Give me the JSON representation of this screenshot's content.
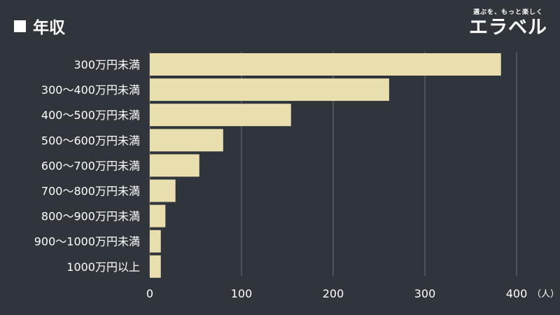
{
  "header": {
    "title": "年収",
    "logo_tagline": "選ぶを、もっと楽しく",
    "logo_name": "エラベル"
  },
  "colors": {
    "background": "#30343b",
    "bar": "#e9dfae",
    "gridline": "#6b7078",
    "text": "#ffffff"
  },
  "chart_data": {
    "type": "bar",
    "orientation": "horizontal",
    "title": "年収",
    "categories": [
      "300万円未満",
      "300〜400万円未満",
      "400〜500万円未満",
      "500〜600万円未満",
      "600〜700万円未満",
      "700〜800万円未満",
      "800〜900万円未満",
      "900〜1000万円未満",
      "1000万円以上"
    ],
    "values": [
      383,
      261,
      154,
      80,
      54,
      28,
      17,
      12,
      12
    ],
    "xlim": [
      0,
      400
    ],
    "xticks": [
      0,
      100,
      200,
      300,
      400
    ],
    "xunit": "（人）",
    "grid": true
  }
}
